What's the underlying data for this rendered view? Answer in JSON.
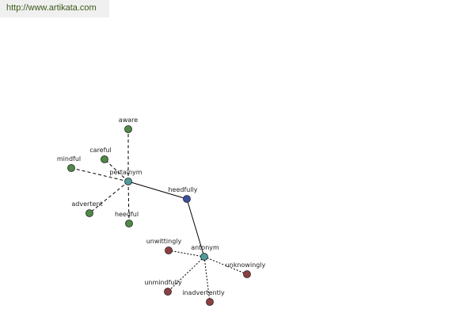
{
  "header": {
    "url": "http://www.artikata.com"
  },
  "colors": {
    "center": "#3c4ea0",
    "relation": "#4f9b9b",
    "synonym": "#4f8a46",
    "antonym": "#8e4040",
    "edge": "#000000"
  },
  "graph": {
    "center": "heedfully",
    "relations": [
      {
        "label": "pertainym",
        "words": [
          "aware",
          "careful",
          "mindful",
          "advertent",
          "heedful"
        ]
      },
      {
        "label": "antonym",
        "words": [
          "unwittingly",
          "unknowingly",
          "unmindfully",
          "inadvertently"
        ]
      }
    ]
  }
}
